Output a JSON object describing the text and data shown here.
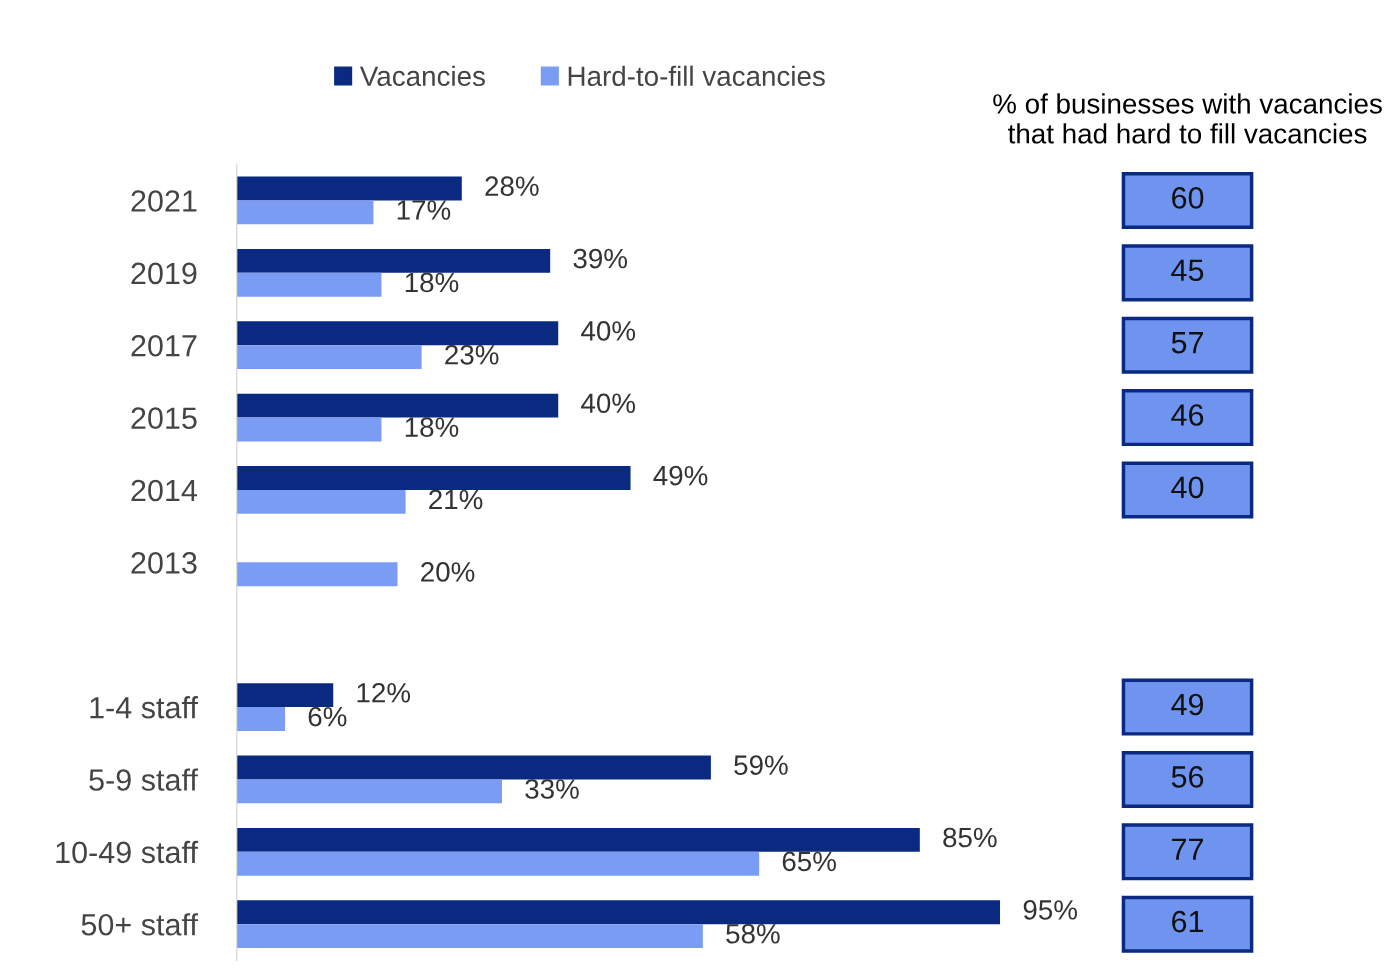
{
  "chart_data": [
    {
      "type": "bar",
      "orientation": "horizontal",
      "tick_labels": "y",
      "legend": "top",
      "grid": false,
      "categories": [
        "2021",
        "2019",
        "2017",
        "2015",
        "2014",
        "2013",
        null,
        "1-4 staff",
        "5-9 staff",
        "10-49 staff",
        "50+ staff"
      ],
      "series": [
        {
          "name": "Vacancies",
          "color": "#0a2a82",
          "values": [
            28,
            39,
            40,
            40,
            49,
            null,
            null,
            12,
            59,
            85,
            95
          ],
          "value_labels": [
            "28%",
            "39%",
            "40%",
            "40%",
            "49%",
            null,
            null,
            "12%",
            "59%",
            "85%",
            "95%"
          ]
        },
        {
          "name": "Hard-to-fill vacancies",
          "color": "#7b9cf5",
          "values": [
            17,
            18,
            23,
            18,
            21,
            20,
            null,
            6,
            33,
            65,
            58
          ],
          "value_labels": [
            "17%",
            "18%",
            "23%",
            "18%",
            "21%",
            "20%",
            null,
            "6%",
            "33%",
            "65%",
            "58%"
          ]
        }
      ]
    },
    {
      "type": "other",
      "title": "% of businesses with vacancies that had hard to fill vacancies",
      "categories": [
        null,
        null,
        null,
        null,
        null,
        null,
        null,
        null,
        null,
        null,
        null
      ],
      "values": [
        60,
        45,
        57,
        46,
        40,
        null,
        null,
        49,
        56,
        77,
        61
      ],
      "data_labels": true,
      "color": "#6f94f0"
    }
  ]
}
